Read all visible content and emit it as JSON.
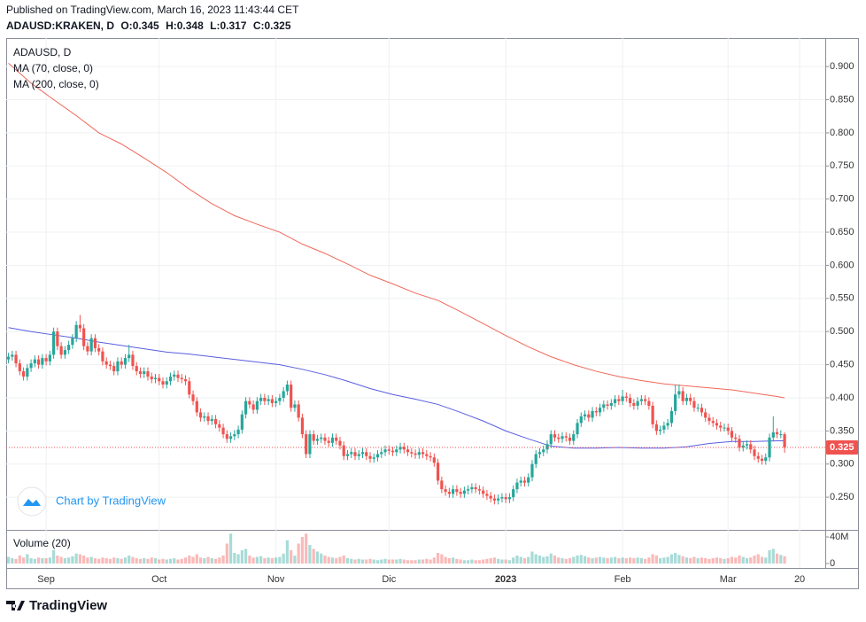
{
  "header": {
    "published": "Published on TradingView.com, March 16, 2023 11:43:44 CET",
    "symbol": "ADAUSD:KRAKEN, D",
    "ohlc_labels": [
      "O:",
      "H:",
      "L:",
      "C:"
    ]
  },
  "chart_data": {
    "type": "candlestick",
    "legend_title": "ADAUSD, D",
    "up_color": "#26a69a",
    "down_color": "#ef5350",
    "grid": true,
    "xlim": [
      -0.6,
      216.8
    ],
    "xticks": [
      {
        "value": 10,
        "label": "Sep"
      },
      {
        "value": 40,
        "label": "Oct"
      },
      {
        "value": 71,
        "label": "Nov"
      },
      {
        "value": 101,
        "label": "Dic"
      },
      {
        "value": 132,
        "label": "2023"
      },
      {
        "value": 163,
        "label": "Feb"
      },
      {
        "value": 191,
        "label": "Mar"
      },
      {
        "value": 210,
        "label": "20"
      }
    ],
    "ylim": [
      0.202,
      0.943
    ],
    "yticks": [
      {
        "value": 0.25,
        "label": "0.250"
      },
      {
        "value": 0.3,
        "label": "0.300"
      },
      {
        "value": 0.35,
        "label": "0.350"
      },
      {
        "value": 0.4,
        "label": "0.400"
      },
      {
        "value": 0.45,
        "label": "0.450"
      },
      {
        "value": 0.5,
        "label": "0.500"
      },
      {
        "value": 0.55,
        "label": "0.550"
      },
      {
        "value": 0.6,
        "label": "0.600"
      },
      {
        "value": 0.65,
        "label": "0.650"
      },
      {
        "value": 0.7,
        "label": "0.700"
      },
      {
        "value": 0.75,
        "label": "0.750"
      },
      {
        "value": 0.8,
        "label": "0.800"
      },
      {
        "value": 0.85,
        "label": "0.850"
      },
      {
        "value": 0.9,
        "label": "0.900"
      }
    ],
    "open": [
      0.458,
      0.462,
      0.465,
      0.452,
      0.44,
      0.432,
      0.445,
      0.452,
      0.458,
      0.45,
      0.46,
      0.455,
      0.465,
      0.5,
      0.478,
      0.465,
      0.472,
      0.48,
      0.49,
      0.51,
      0.505,
      0.478,
      0.47,
      0.49,
      0.475,
      0.47,
      0.455,
      0.45,
      0.448,
      0.44,
      0.455,
      0.45,
      0.46,
      0.465,
      0.448,
      0.44,
      0.436,
      0.44,
      0.432,
      0.428,
      0.43,
      0.425,
      0.42,
      0.425,
      0.432,
      0.435,
      0.43,
      0.428,
      0.425,
      0.405,
      0.395,
      0.378,
      0.37,
      0.372,
      0.365,
      0.368,
      0.36,
      0.355,
      0.345,
      0.338,
      0.342,
      0.345,
      0.352,
      0.375,
      0.395,
      0.39,
      0.382,
      0.395,
      0.4,
      0.395,
      0.398,
      0.392,
      0.395,
      0.4,
      0.41,
      0.42,
      0.385,
      0.39,
      0.37,
      0.345,
      0.315,
      0.345,
      0.335,
      0.338,
      0.34,
      0.335,
      0.332,
      0.34,
      0.335,
      0.328,
      0.312,
      0.315,
      0.318,
      0.312,
      0.315,
      0.318,
      0.312,
      0.308,
      0.31,
      0.315,
      0.318,
      0.322,
      0.32,
      0.318,
      0.322,
      0.326,
      0.322,
      0.318,
      0.316,
      0.314,
      0.318,
      0.315,
      0.312,
      0.31,
      0.302,
      0.275,
      0.262,
      0.258,
      0.255,
      0.262,
      0.258,
      0.255,
      0.26,
      0.262,
      0.265,
      0.262,
      0.26,
      0.255,
      0.252,
      0.248,
      0.245,
      0.248,
      0.25,
      0.247,
      0.25,
      0.262,
      0.272,
      0.275,
      0.272,
      0.28,
      0.3,
      0.315,
      0.318,
      0.322,
      0.33,
      0.345,
      0.34,
      0.338,
      0.342,
      0.34,
      0.335,
      0.345,
      0.362,
      0.372,
      0.375,
      0.37,
      0.38,
      0.378,
      0.385,
      0.39,
      0.388,
      0.392,
      0.398,
      0.395,
      0.402,
      0.4,
      0.392,
      0.388,
      0.395,
      0.398,
      0.395,
      0.388,
      0.36,
      0.35,
      0.352,
      0.358,
      0.362,
      0.38,
      0.405,
      0.41,
      0.395,
      0.4,
      0.395,
      0.385,
      0.385,
      0.378,
      0.37,
      0.365,
      0.362,
      0.358,
      0.355,
      0.355,
      0.35,
      0.34,
      0.338,
      0.325,
      0.328,
      0.33,
      0.322,
      0.312,
      0.308,
      0.305,
      0.31,
      0.34,
      0.348,
      0.345,
      0.345
    ],
    "high": [
      0.468,
      0.471,
      0.471,
      0.458,
      0.446,
      0.451,
      0.458,
      0.464,
      0.464,
      0.466,
      0.466,
      0.471,
      0.506,
      0.506,
      0.484,
      0.478,
      0.486,
      0.496,
      0.516,
      0.525,
      0.511,
      0.484,
      0.496,
      0.496,
      0.481,
      0.476,
      0.461,
      0.456,
      0.454,
      0.461,
      0.461,
      0.466,
      0.48,
      0.471,
      0.454,
      0.446,
      0.446,
      0.446,
      0.438,
      0.436,
      0.436,
      0.431,
      0.431,
      0.438,
      0.441,
      0.441,
      0.436,
      0.434,
      0.431,
      0.411,
      0.401,
      0.384,
      0.378,
      0.378,
      0.374,
      0.374,
      0.366,
      0.361,
      0.351,
      0.348,
      0.351,
      0.358,
      0.381,
      0.401,
      0.401,
      0.396,
      0.401,
      0.406,
      0.406,
      0.404,
      0.404,
      0.401,
      0.406,
      0.416,
      0.426,
      0.426,
      0.396,
      0.396,
      0.376,
      0.351,
      0.351,
      0.351,
      0.344,
      0.346,
      0.346,
      0.341,
      0.346,
      0.346,
      0.341,
      0.334,
      0.321,
      0.324,
      0.324,
      0.321,
      0.324,
      0.324,
      0.318,
      0.316,
      0.321,
      0.324,
      0.328,
      0.328,
      0.326,
      0.328,
      0.332,
      0.332,
      0.328,
      0.324,
      0.322,
      0.324,
      0.324,
      0.321,
      0.318,
      0.316,
      0.308,
      0.281,
      0.268,
      0.264,
      0.268,
      0.268,
      0.264,
      0.266,
      0.268,
      0.271,
      0.271,
      0.268,
      0.266,
      0.261,
      0.258,
      0.254,
      0.254,
      0.256,
      0.256,
      0.256,
      0.268,
      0.278,
      0.281,
      0.281,
      0.286,
      0.306,
      0.321,
      0.324,
      0.328,
      0.336,
      0.351,
      0.351,
      0.346,
      0.348,
      0.348,
      0.346,
      0.351,
      0.368,
      0.378,
      0.381,
      0.381,
      0.386,
      0.386,
      0.391,
      0.396,
      0.396,
      0.398,
      0.404,
      0.404,
      0.412,
      0.408,
      0.406,
      0.398,
      0.401,
      0.404,
      0.404,
      0.401,
      0.394,
      0.366,
      0.358,
      0.364,
      0.368,
      0.386,
      0.42,
      0.42,
      0.416,
      0.406,
      0.406,
      0.401,
      0.391,
      0.391,
      0.384,
      0.376,
      0.371,
      0.368,
      0.364,
      0.361,
      0.361,
      0.356,
      0.346,
      0.344,
      0.334,
      0.336,
      0.336,
      0.328,
      0.318,
      0.314,
      0.316,
      0.346,
      0.372,
      0.354,
      0.351,
      0.348
    ],
    "low": [
      0.452,
      0.456,
      0.446,
      0.434,
      0.426,
      0.426,
      0.439,
      0.446,
      0.444,
      0.444,
      0.449,
      0.449,
      0.459,
      0.472,
      0.459,
      0.459,
      0.466,
      0.474,
      0.484,
      0.499,
      0.472,
      0.464,
      0.464,
      0.469,
      0.464,
      0.449,
      0.444,
      0.442,
      0.434,
      0.434,
      0.444,
      0.444,
      0.454,
      0.442,
      0.434,
      0.43,
      0.43,
      0.426,
      0.422,
      0.422,
      0.419,
      0.414,
      0.414,
      0.419,
      0.426,
      0.424,
      0.422,
      0.419,
      0.399,
      0.389,
      0.372,
      0.364,
      0.364,
      0.359,
      0.359,
      0.354,
      0.349,
      0.339,
      0.332,
      0.332,
      0.336,
      0.339,
      0.346,
      0.369,
      0.384,
      0.376,
      0.376,
      0.389,
      0.389,
      0.389,
      0.386,
      0.386,
      0.389,
      0.394,
      0.404,
      0.379,
      0.379,
      0.364,
      0.339,
      0.309,
      0.309,
      0.329,
      0.329,
      0.332,
      0.329,
      0.326,
      0.326,
      0.329,
      0.322,
      0.306,
      0.306,
      0.309,
      0.306,
      0.306,
      0.309,
      0.306,
      0.302,
      0.302,
      0.304,
      0.309,
      0.312,
      0.314,
      0.312,
      0.312,
      0.316,
      0.316,
      0.312,
      0.31,
      0.308,
      0.308,
      0.309,
      0.306,
      0.304,
      0.296,
      0.269,
      0.256,
      0.252,
      0.249,
      0.249,
      0.252,
      0.249,
      0.249,
      0.254,
      0.256,
      0.256,
      0.254,
      0.249,
      0.246,
      0.242,
      0.239,
      0.239,
      0.242,
      0.241,
      0.241,
      0.244,
      0.256,
      0.266,
      0.266,
      0.266,
      0.274,
      0.294,
      0.309,
      0.312,
      0.316,
      0.324,
      0.334,
      0.332,
      0.332,
      0.334,
      0.329,
      0.329,
      0.339,
      0.356,
      0.366,
      0.364,
      0.364,
      0.372,
      0.372,
      0.379,
      0.382,
      0.382,
      0.386,
      0.389,
      0.389,
      0.394,
      0.386,
      0.382,
      0.382,
      0.389,
      0.389,
      0.382,
      0.354,
      0.344,
      0.344,
      0.346,
      0.352,
      0.356,
      0.374,
      0.399,
      0.389,
      0.389,
      0.389,
      0.379,
      0.379,
      0.372,
      0.364,
      0.359,
      0.356,
      0.352,
      0.349,
      0.349,
      0.344,
      0.334,
      0.332,
      0.319,
      0.319,
      0.322,
      0.316,
      0.306,
      0.302,
      0.299,
      0.299,
      0.304,
      0.334,
      0.339,
      0.339,
      0.317
    ],
    "close": [
      0.462,
      0.465,
      0.452,
      0.44,
      0.432,
      0.445,
      0.452,
      0.458,
      0.45,
      0.46,
      0.455,
      0.465,
      0.5,
      0.478,
      0.465,
      0.472,
      0.48,
      0.49,
      0.51,
      0.505,
      0.478,
      0.47,
      0.49,
      0.475,
      0.47,
      0.455,
      0.45,
      0.448,
      0.44,
      0.455,
      0.45,
      0.46,
      0.465,
      0.448,
      0.44,
      0.436,
      0.44,
      0.432,
      0.428,
      0.43,
      0.425,
      0.42,
      0.425,
      0.432,
      0.435,
      0.43,
      0.428,
      0.425,
      0.405,
      0.395,
      0.378,
      0.37,
      0.372,
      0.365,
      0.368,
      0.36,
      0.355,
      0.345,
      0.338,
      0.342,
      0.345,
      0.352,
      0.375,
      0.395,
      0.39,
      0.382,
      0.395,
      0.4,
      0.395,
      0.398,
      0.392,
      0.395,
      0.4,
      0.41,
      0.42,
      0.385,
      0.39,
      0.37,
      0.345,
      0.315,
      0.345,
      0.335,
      0.338,
      0.34,
      0.335,
      0.332,
      0.34,
      0.335,
      0.328,
      0.312,
      0.315,
      0.318,
      0.312,
      0.315,
      0.318,
      0.312,
      0.308,
      0.31,
      0.315,
      0.318,
      0.322,
      0.32,
      0.318,
      0.322,
      0.326,
      0.322,
      0.318,
      0.316,
      0.314,
      0.318,
      0.315,
      0.312,
      0.31,
      0.302,
      0.275,
      0.262,
      0.258,
      0.255,
      0.262,
      0.258,
      0.255,
      0.26,
      0.262,
      0.265,
      0.262,
      0.26,
      0.255,
      0.252,
      0.248,
      0.245,
      0.248,
      0.25,
      0.247,
      0.25,
      0.262,
      0.272,
      0.275,
      0.272,
      0.28,
      0.3,
      0.315,
      0.318,
      0.322,
      0.33,
      0.345,
      0.34,
      0.338,
      0.342,
      0.34,
      0.335,
      0.345,
      0.362,
      0.372,
      0.375,
      0.37,
      0.38,
      0.378,
      0.385,
      0.39,
      0.388,
      0.392,
      0.398,
      0.395,
      0.402,
      0.4,
      0.392,
      0.388,
      0.395,
      0.398,
      0.395,
      0.388,
      0.36,
      0.35,
      0.352,
      0.358,
      0.362,
      0.38,
      0.405,
      0.41,
      0.395,
      0.4,
      0.395,
      0.385,
      0.385,
      0.378,
      0.37,
      0.365,
      0.362,
      0.358,
      0.355,
      0.355,
      0.35,
      0.34,
      0.338,
      0.325,
      0.328,
      0.33,
      0.322,
      0.312,
      0.308,
      0.305,
      0.31,
      0.34,
      0.348,
      0.345,
      0.345,
      0.325
    ],
    "moving_averages": [
      {
        "name": "MA (70, close, 0)",
        "color": "#5a5ee0",
        "x": [
          0,
          6,
          12,
          18,
          24,
          30,
          36,
          42,
          48,
          54,
          60,
          66,
          72,
          78,
          84,
          90,
          96,
          102,
          108,
          114,
          120,
          126,
          132,
          138,
          144,
          150,
          156,
          162,
          168,
          174,
          180,
          186,
          192,
          198,
          204,
          206
        ],
        "values": [
          0.506,
          0.5,
          0.495,
          0.49,
          0.484,
          0.479,
          0.474,
          0.469,
          0.466,
          0.462,
          0.458,
          0.454,
          0.45,
          0.443,
          0.435,
          0.425,
          0.414,
          0.405,
          0.398,
          0.39,
          0.378,
          0.365,
          0.35,
          0.338,
          0.327,
          0.324,
          0.324,
          0.325,
          0.324,
          0.324,
          0.326,
          0.331,
          0.334,
          0.334,
          0.335,
          0.335
        ]
      },
      {
        "name": "MA (200, close, 0)",
        "color": "#f0685a",
        "x": [
          0,
          6,
          12,
          18,
          24,
          30,
          36,
          42,
          48,
          54,
          60,
          66,
          72,
          78,
          84,
          90,
          96,
          102,
          108,
          114,
          120,
          126,
          132,
          138,
          144,
          150,
          156,
          162,
          168,
          174,
          180,
          186,
          192,
          198,
          204,
          206
        ],
        "values": [
          0.905,
          0.875,
          0.85,
          0.826,
          0.8,
          0.783,
          0.762,
          0.74,
          0.715,
          0.693,
          0.675,
          0.662,
          0.65,
          0.632,
          0.618,
          0.602,
          0.585,
          0.572,
          0.558,
          0.547,
          0.53,
          0.512,
          0.494,
          0.477,
          0.462,
          0.45,
          0.44,
          0.432,
          0.426,
          0.421,
          0.418,
          0.415,
          0.412,
          0.407,
          0.402,
          0.4
        ]
      }
    ],
    "volume": {
      "name": "Volume (20)",
      "ylim": [
        0,
        50
      ],
      "yticks": [
        0,
        {
          "value": 40,
          "label": "40M"
        }
      ],
      "values": [
        10,
        8,
        7,
        12,
        9,
        14,
        8,
        7,
        9,
        8,
        8,
        9,
        20,
        12,
        10,
        8,
        9,
        11,
        15,
        14,
        12,
        9,
        10,
        8,
        7,
        9,
        8,
        7,
        9,
        8,
        7,
        9,
        12,
        10,
        8,
        7,
        8,
        7,
        9,
        8,
        6,
        7,
        6,
        7,
        8,
        6,
        7,
        9,
        12,
        10,
        14,
        9,
        8,
        10,
        8,
        7,
        9,
        12,
        30,
        45,
        16,
        14,
        20,
        22,
        12,
        9,
        10,
        11,
        8,
        9,
        8,
        9,
        10,
        15,
        35,
        20,
        12,
        30,
        40,
        45,
        28,
        22,
        18,
        15,
        12,
        10,
        9,
        8,
        10,
        12,
        8,
        7,
        6,
        7,
        6,
        6,
        7,
        6,
        5,
        6,
        7,
        6,
        6,
        6,
        7,
        6,
        5,
        5,
        5,
        6,
        6,
        7,
        6,
        9,
        16,
        14,
        10,
        8,
        9,
        7,
        6,
        5,
        5,
        6,
        5,
        5,
        6,
        7,
        8,
        9,
        7,
        6,
        6,
        5,
        9,
        12,
        10,
        8,
        10,
        18,
        14,
        12,
        10,
        11,
        15,
        12,
        9,
        8,
        7,
        8,
        10,
        12,
        13,
        11,
        9,
        8,
        9,
        10,
        9,
        8,
        9,
        10,
        8,
        9,
        8,
        9,
        8,
        9,
        8,
        7,
        9,
        14,
        12,
        8,
        9,
        10,
        14,
        16,
        13,
        11,
        9,
        8,
        10,
        8,
        9,
        8,
        7,
        8,
        9,
        8,
        7,
        8,
        10,
        9,
        12,
        10,
        8,
        9,
        12,
        14,
        10,
        9,
        20,
        22,
        15,
        13,
        11
      ]
    }
  },
  "branding": {
    "badge": "Chart by TradingView",
    "footer": "TradingView"
  }
}
